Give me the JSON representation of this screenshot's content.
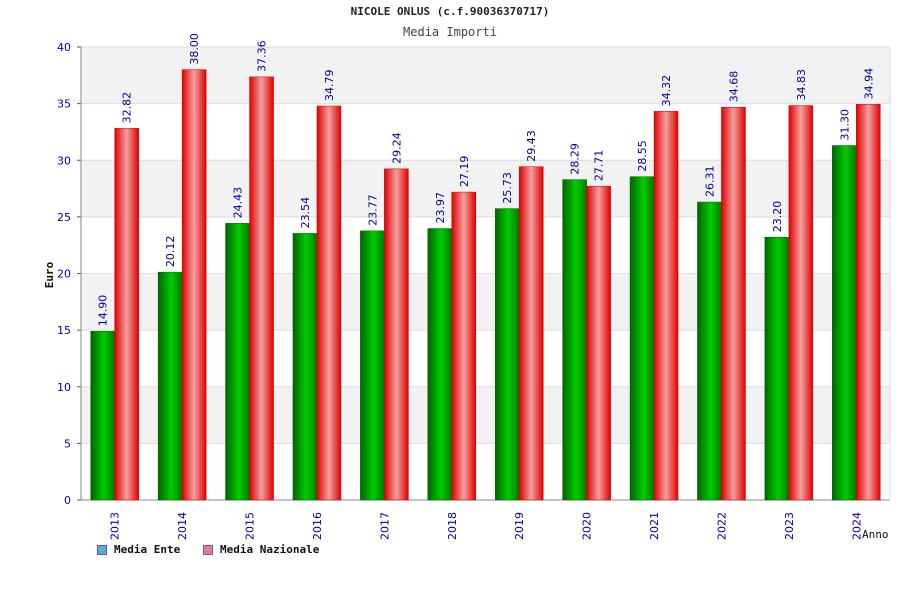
{
  "chart_data": {
    "type": "bar",
    "title": "NICOLE ONLUS (c.f.90036370717)",
    "subtitle": "Media Importi",
    "xlabel": "Anno",
    "ylabel": "Euro",
    "ylim": [
      0,
      40
    ],
    "yticks": [
      0,
      5,
      10,
      15,
      20,
      25,
      30,
      35,
      40
    ],
    "categories": [
      "2013",
      "2014",
      "2015",
      "2016",
      "2017",
      "2018",
      "2019",
      "2020",
      "2021",
      "2022",
      "2023",
      "2024"
    ],
    "series": [
      {
        "name": "Media Ente",
        "values": [
          14.9,
          20.12,
          24.43,
          23.54,
          23.77,
          23.97,
          25.73,
          28.29,
          28.55,
          26.31,
          23.2,
          31.3
        ],
        "labels": [
          "14.90",
          "20.12",
          "24.43",
          "23.54",
          "23.77",
          "23.97",
          "25.73",
          "28.29",
          "28.55",
          "26.31",
          "23.20",
          "31.30"
        ],
        "color": "#00a000",
        "legend_color": "#5ba8e0"
      },
      {
        "name": "Media Nazionale",
        "values": [
          32.82,
          38.0,
          37.36,
          34.79,
          29.24,
          27.19,
          29.43,
          27.71,
          34.32,
          34.68,
          34.83,
          34.94
        ],
        "labels": [
          "32.82",
          "38.00",
          "37.36",
          "34.79",
          "29.24",
          "27.19",
          "29.43",
          "27.71",
          "34.32",
          "34.68",
          "34.83",
          "34.94"
        ],
        "color": "#e00000",
        "legend_color": "#e07ab0"
      }
    ],
    "grid": true,
    "legend_position": "bottom-left"
  }
}
